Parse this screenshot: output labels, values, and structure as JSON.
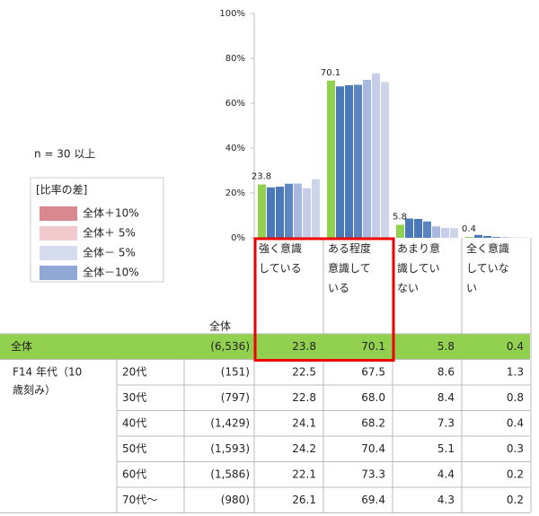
{
  "chart_data": {
    "type": "bar",
    "note": "n = 30 以上",
    "legend_title": "[比率の差]",
    "legend": [
      {
        "label": "全体＋10%",
        "color": "#d9888f"
      },
      {
        "label": "全体＋ 5%",
        "color": "#f2c9cc"
      },
      {
        "label": "全体－ 5%",
        "color": "#d5dcef"
      },
      {
        "label": "全体－10%",
        "color": "#8fa8d6"
      }
    ],
    "categories": [
      "強く意識している",
      "ある程度意識している",
      "あまり意識していない",
      "全く意識していない"
    ],
    "ylim": [
      0,
      100
    ],
    "yticks": [
      {
        "value": 0,
        "label": "0%"
      },
      {
        "value": 20,
        "label": "20%"
      },
      {
        "value": 40,
        "label": "40%"
      },
      {
        "value": 60,
        "label": "60%"
      },
      {
        "value": 80,
        "label": "80%"
      },
      {
        "value": 100,
        "label": "100%"
      }
    ],
    "n_header": "全体",
    "group_label": "F14 年代（10歳刻み）",
    "series": [
      {
        "name": "全体",
        "n_label": "(6,536)",
        "color": "#92d050",
        "values": [
          23.8,
          70.1,
          5.8,
          0.4
        ],
        "value_labels": [
          "23.8",
          "70.1",
          "5.8",
          "0.4"
        ]
      },
      {
        "name": "20代",
        "n_label": "(151)",
        "color": "#4a78b8",
        "values": [
          22.5,
          67.5,
          8.6,
          1.3
        ],
        "value_labels": [
          "22.5",
          "67.5",
          "8.6",
          "1.3"
        ]
      },
      {
        "name": "30代",
        "n_label": "(797)",
        "color": "#4a78b8",
        "values": [
          22.8,
          68.0,
          8.4,
          0.8
        ],
        "value_labels": [
          "22.8",
          "68.0",
          "8.4",
          "0.8"
        ]
      },
      {
        "name": "40代",
        "n_label": "(1,429)",
        "color": "#5b86c2",
        "values": [
          24.1,
          68.2,
          7.3,
          0.4
        ],
        "value_labels": [
          "24.1",
          "68.2",
          "7.3",
          "0.4"
        ]
      },
      {
        "name": "50代",
        "n_label": "(1,593)",
        "color": "#a9b8de",
        "values": [
          24.2,
          70.4,
          5.1,
          0.3
        ],
        "value_labels": [
          "24.2",
          "70.4",
          "5.1",
          "0.3"
        ]
      },
      {
        "name": "60代",
        "n_label": "(1,586)",
        "color": "#c6cde8",
        "values": [
          22.1,
          73.3,
          4.4,
          0.2
        ],
        "value_labels": [
          "22.1",
          "73.3",
          "4.4",
          "0.2"
        ]
      },
      {
        "name": "70代〜",
        "n_label": "(980)",
        "color": "#cdd5ea",
        "values": [
          26.1,
          69.4,
          4.3,
          0.2
        ],
        "value_labels": [
          "26.1",
          "69.4",
          "4.3",
          "0.2"
        ]
      }
    ]
  }
}
